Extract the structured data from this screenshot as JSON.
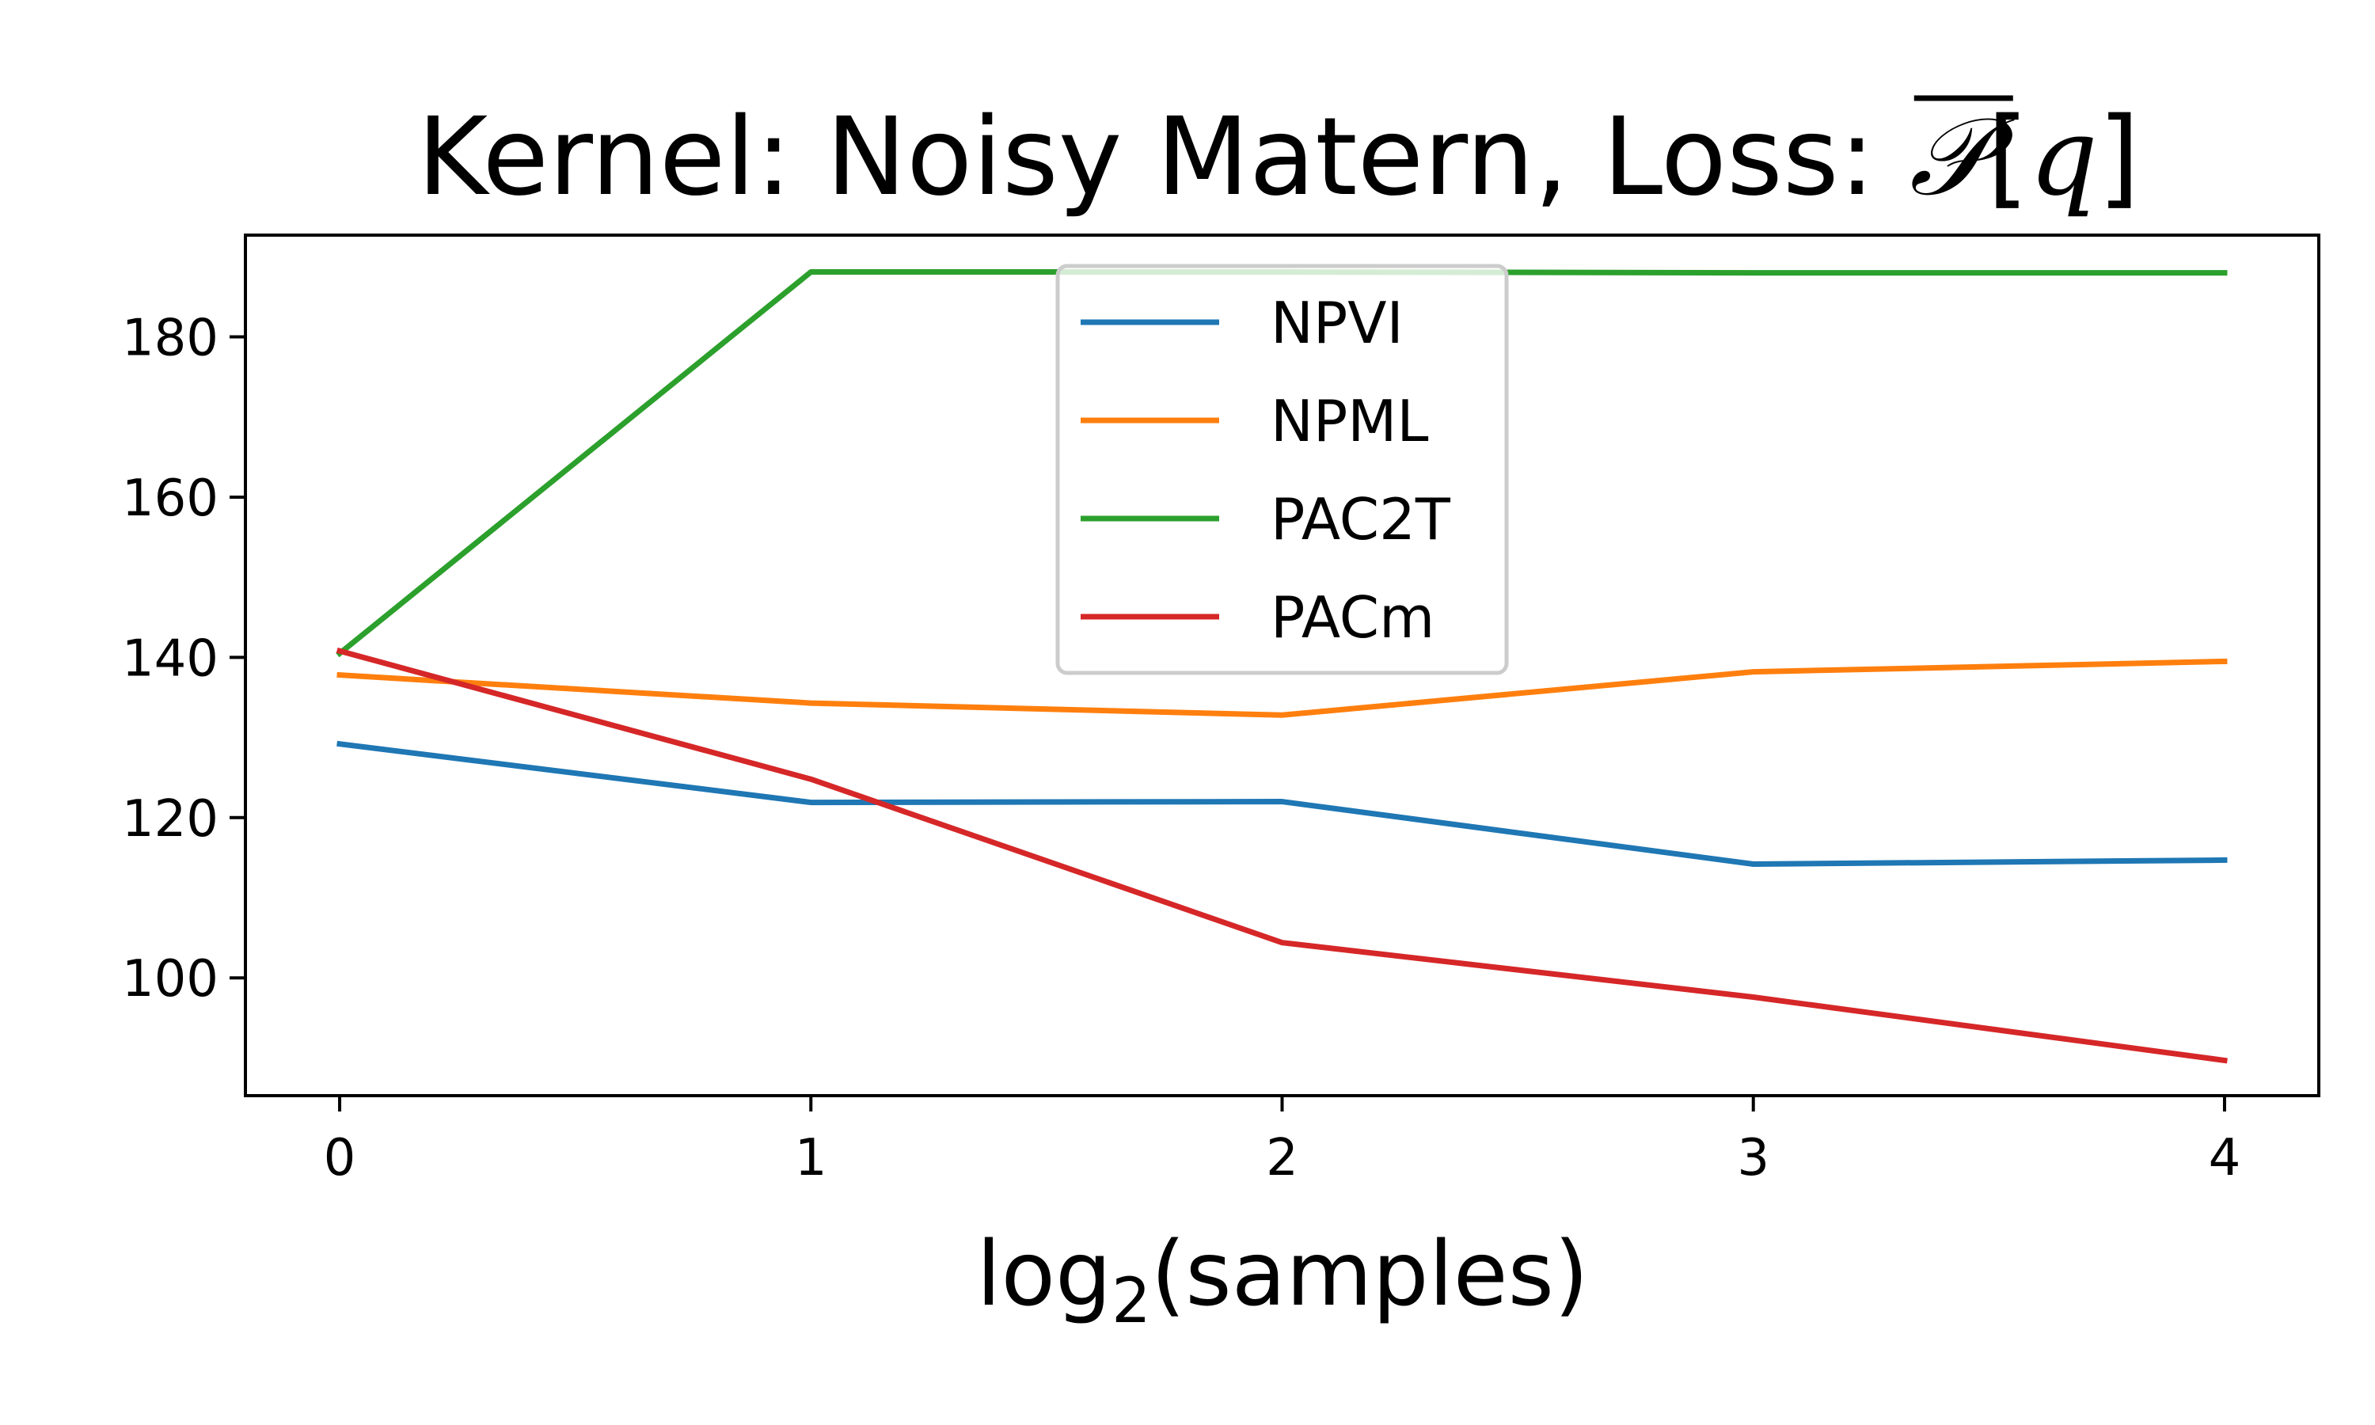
{
  "chart_data": {
    "type": "line",
    "title": "Kernel: Noisy Matern, Loss: ̅𝒫[q]",
    "title_parts": {
      "prefix": "Kernel: Noisy Matern, Loss: ",
      "script_symbol": "𝒫",
      "bracket_open": "[",
      "variable": "q",
      "bracket_close": "]"
    },
    "xlabel": "log2(samples)",
    "xlabel_parts": {
      "base": "log",
      "subscript": "2",
      "rest": "(samples)"
    },
    "ylabel": "",
    "x": [
      0,
      1,
      2,
      3,
      4
    ],
    "xlim": [
      -0.2,
      4.2
    ],
    "ylim": [
      85.3,
      192.7
    ],
    "xticks": [
      0,
      1,
      2,
      3,
      4
    ],
    "yticks": [
      100,
      120,
      140,
      160,
      180
    ],
    "grid": false,
    "legend_position": "upper center",
    "series": [
      {
        "name": "NPVI",
        "color": "#1f77b4",
        "values": [
          129.2,
          121.9,
          122.0,
          114.2,
          114.7
        ]
      },
      {
        "name": "NPML",
        "color": "#ff7f0e",
        "values": [
          137.8,
          134.3,
          132.8,
          138.2,
          139.5
        ]
      },
      {
        "name": "PAC2T",
        "color": "#2ca02c",
        "values": [
          140.5,
          188.1,
          188.1,
          188.0,
          188.0
        ]
      },
      {
        "name": "PACm",
        "color": "#d62728",
        "values": [
          140.8,
          124.8,
          104.4,
          97.6,
          89.7
        ]
      }
    ]
  }
}
